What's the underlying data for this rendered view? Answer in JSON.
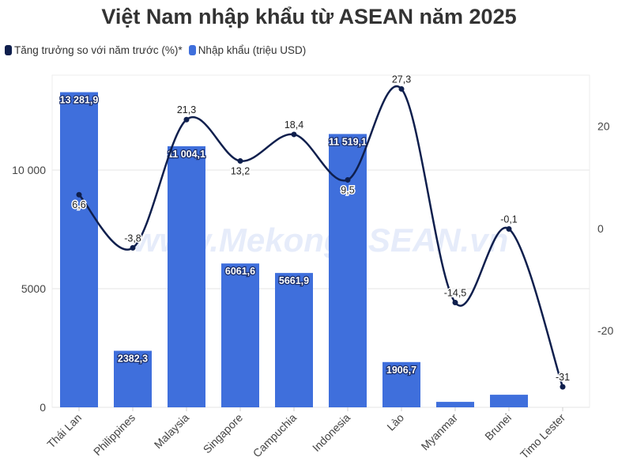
{
  "chart_data": {
    "type": "bar+line",
    "title": "Việt Nam nhập khẩu từ ASEAN năm 2025",
    "categories": [
      "Thái Lan",
      "Philippines",
      "Malaysia",
      "Singapore",
      "Campuchia",
      "Indonesia",
      "Lào",
      "Myanmar",
      "Brunei",
      "Timo Lester"
    ],
    "series": [
      {
        "name": "Tăng trưởng so với năm trước (%)*",
        "type": "line",
        "axis": "right",
        "color": "#0f1f4d",
        "values": [
          6.6,
          -3.8,
          21.3,
          13.2,
          18.4,
          9.5,
          27.3,
          -14.5,
          -0.1,
          -31
        ],
        "labels": [
          "6,6",
          "-3,8",
          "21,3",
          "13,2",
          "18,4",
          "9,5",
          "27,3",
          "-14,5",
          "-0,1",
          "-31"
        ]
      },
      {
        "name": "Nhập khẩu (triệu USD)",
        "type": "bar",
        "axis": "left",
        "color": "#3f6fdc",
        "values": [
          13281.9,
          2382.3,
          11004.1,
          6061.6,
          5661.9,
          11519.1,
          1906.7,
          230,
          530,
          null
        ],
        "labels": [
          "13 281,9",
          "2382,3",
          "11 004,1",
          "6061,6",
          "5661,9",
          "11 519,1",
          "1906,7",
          "",
          "",
          ""
        ]
      }
    ],
    "left_axis": {
      "range": [
        0,
        14000
      ],
      "ticks": [
        0,
        5000,
        10000
      ],
      "tick_labels": [
        "0",
        "5000",
        "10 000"
      ]
    },
    "right_axis": {
      "range": [
        -35,
        30
      ],
      "ticks": [
        -20,
        0,
        20
      ],
      "tick_labels": [
        "-20",
        "0",
        "20"
      ]
    },
    "grid": true,
    "legend": "top-left",
    "watermark": "www.MekongASEAN.vn"
  }
}
